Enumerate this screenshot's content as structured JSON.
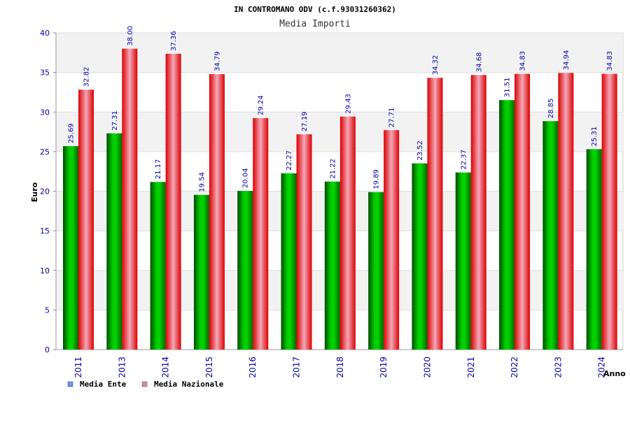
{
  "chart_data": {
    "type": "bar",
    "title": "IN CONTROMANO ODV (c.f.93031260362)",
    "subtitle": "Media Importi",
    "xlabel": "Anno",
    "ylabel": "Euro",
    "ylim": [
      0,
      40
    ],
    "yticks": [
      0,
      5,
      10,
      15,
      20,
      25,
      30,
      35,
      40
    ],
    "grid": true,
    "legend_position": "bottom-left",
    "categories": [
      "2011",
      "2013",
      "2014",
      "2015",
      "2016",
      "2017",
      "2018",
      "2019",
      "2020",
      "2021",
      "2022",
      "2023",
      "2024"
    ],
    "series": [
      {
        "name": "Media Ente",
        "color": "#00aa00",
        "legend_color": "#6699ee",
        "values": [
          25.69,
          27.31,
          21.17,
          19.54,
          20.04,
          22.27,
          21.22,
          19.89,
          23.52,
          22.37,
          31.51,
          28.85,
          25.31
        ],
        "labels": [
          "25.69",
          "27.31",
          "21.17",
          "19.54",
          "20.04",
          "22.27",
          "21.22",
          "19.89",
          "23.52",
          "22.37",
          "31.51",
          "28.85",
          "25.31"
        ]
      },
      {
        "name": "Media Nazionale",
        "color": "#ee0000",
        "legend_color": "#dd88aa",
        "values": [
          32.82,
          38.0,
          37.36,
          34.79,
          29.24,
          27.19,
          29.43,
          27.71,
          34.32,
          34.68,
          34.83,
          34.94,
          34.83
        ],
        "labels": [
          "32.82",
          "38.00",
          "37.36",
          "34.79",
          "29.24",
          "27.19",
          "29.43",
          "27.71",
          "34.32",
          "34.68",
          "34.83",
          "34.94",
          "34.83"
        ]
      }
    ]
  }
}
